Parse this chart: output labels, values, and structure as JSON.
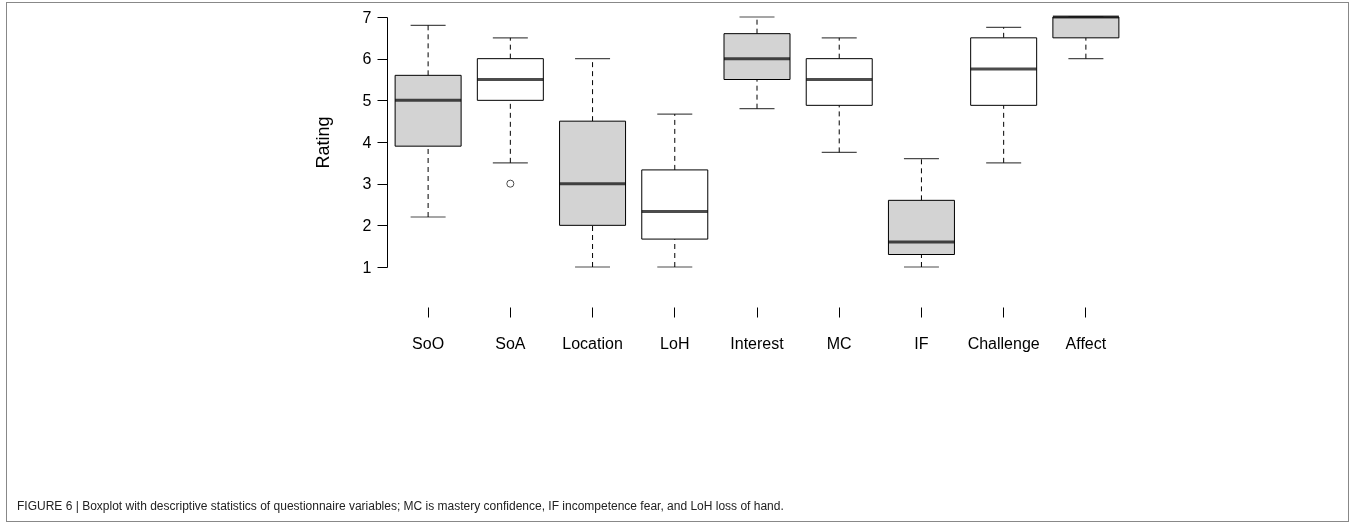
{
  "chart_data": {
    "type": "box",
    "ylabel": "Rating",
    "categories": [
      "SoO",
      "SoA",
      "Location",
      "LoH",
      "Interest",
      "MC",
      "IF",
      "Challenge",
      "Affect"
    ],
    "boxes": [
      {
        "low": 2.2,
        "q1": 3.9,
        "median": 5,
        "q3": 5.6,
        "high": 6.8
      },
      {
        "low": 3.5,
        "q1": 5,
        "median": 5.5,
        "q3": 6,
        "high": 6.5,
        "outliers": [
          3
        ]
      },
      {
        "low": 1,
        "q1": 2,
        "median": 3,
        "q3": 4.5,
        "high": 6
      },
      {
        "low": 1,
        "q1": 1.67,
        "median": 2.33,
        "q3": 3.33,
        "high": 4.67
      },
      {
        "low": 4.8,
        "q1": 5.5,
        "median": 6,
        "q3": 6.6,
        "high": 7
      },
      {
        "low": 3.75,
        "q1": 4.88,
        "median": 5.5,
        "q3": 6,
        "high": 6.5
      },
      {
        "low": 1,
        "q1": 1.3,
        "median": 1.6,
        "q3": 2.6,
        "high": 3.6
      },
      {
        "low": 3.5,
        "q1": 4.88,
        "median": 5.75,
        "q3": 6.5,
        "high": 6.75
      },
      {
        "low": 6,
        "q1": 6.5,
        "median": 7,
        "q3": 7,
        "high": 7
      }
    ],
    "colors": [
      "#d3d3d3",
      "#ffffff",
      "#d3d3d3",
      "#ffffff",
      "#d3d3d3",
      "#ffffff",
      "#d3d3d3",
      "#ffffff",
      "#d3d3d3"
    ],
    "ylim": [
      1,
      7
    ],
    "yticks": [
      1,
      2,
      3,
      4,
      5,
      6,
      7
    ],
    "grid": false,
    "line_style": "dashed",
    "annotations": [
      "FIGURE 6 | Boxplot with descriptive statistics of questionnaire variables; MC is mastery confidence, IF incompetence fear, and LoH loss of hand."
    ]
  }
}
